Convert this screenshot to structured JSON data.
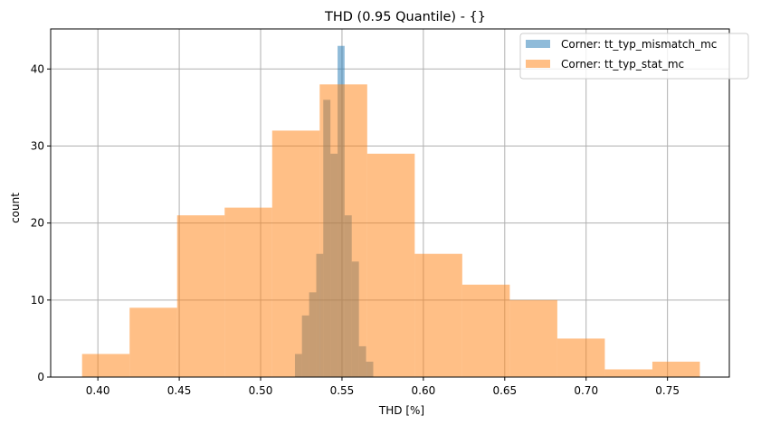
{
  "chart_data": {
    "type": "histogram",
    "title": "THD (0.95 Quantile) - {}",
    "xlabel": "THD [%]",
    "ylabel": "count",
    "xlim": [
      0.371,
      0.788
    ],
    "ylim": [
      0,
      45.2
    ],
    "xticks": [
      0.4,
      0.45,
      0.5,
      0.55,
      0.6,
      0.65,
      0.7,
      0.75
    ],
    "xtick_labels": [
      "0.40",
      "0.45",
      "0.50",
      "0.55",
      "0.60",
      "0.65",
      "0.70",
      "0.75"
    ],
    "yticks": [
      0,
      10,
      20,
      30,
      40
    ],
    "ytick_labels": [
      "0",
      "10",
      "20",
      "30",
      "40"
    ],
    "grid": true,
    "legend_position": "upper right",
    "series": [
      {
        "name": "Corner: tt_typ_mismatch_mc",
        "color": "#1f77b4",
        "alpha": 0.5,
        "bin_edges": [
          0.5211,
          0.5254,
          0.5298,
          0.5342,
          0.5385,
          0.5429,
          0.5473,
          0.5516,
          0.556,
          0.5604,
          0.5648,
          0.5692
        ],
        "counts": [
          3,
          8,
          11,
          16,
          36,
          29,
          43,
          21,
          15,
          4,
          2
        ]
      },
      {
        "name": "Corner: tt_typ_stat_mc",
        "color": "#ff7f0e",
        "alpha": 0.5,
        "bin_edges": [
          0.3903,
          0.4195,
          0.4487,
          0.4779,
          0.5071,
          0.5363,
          0.5655,
          0.5947,
          0.6239,
          0.6531,
          0.6823,
          0.7115,
          0.7407,
          0.7699
        ],
        "counts": [
          3,
          9,
          21,
          22,
          32,
          38,
          29,
          16,
          12,
          10,
          5,
          1,
          2
        ]
      }
    ]
  }
}
